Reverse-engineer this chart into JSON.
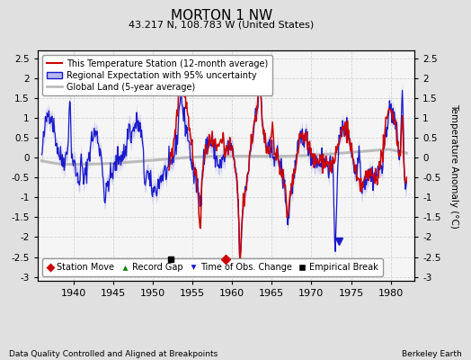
{
  "title": "MORTON 1 NW",
  "subtitle": "43.217 N, 108.783 W (United States)",
  "ylabel": "Temperature Anomaly (°C)",
  "xlabel_years": [
    1940,
    1945,
    1950,
    1955,
    1960,
    1965,
    1970,
    1975,
    1980
  ],
  "yticks": [
    -3,
    -2.5,
    -2,
    -1.5,
    -1,
    -0.5,
    0,
    0.5,
    1,
    1.5,
    2,
    2.5
  ],
  "ylim": [
    -3.1,
    2.7
  ],
  "xlim": [
    1935.5,
    1983.0
  ],
  "bg_color": "#e0e0e0",
  "plot_bg_color": "#f5f5f5",
  "red_color": "#cc0000",
  "blue_color": "#1a1acc",
  "blue_fill_color": "#b8b8ee",
  "gray_color": "#bbbbbb",
  "footer_left": "Data Quality Controlled and Aligned at Breakpoints",
  "footer_right": "Berkeley Earth",
  "legend_entries": [
    "This Temperature Station (12-month average)",
    "Regional Expectation with 95% uncertainty",
    "Global Land (5-year average)"
  ],
  "marker_empirical_break_x": 1952.3,
  "marker_empirical_break_y": -2.55,
  "marker_station_move_x": 1959.2,
  "marker_station_move_y": -2.55,
  "marker_obs_change_x": 1973.5,
  "marker_obs_change_y": -2.1,
  "seed": 42
}
